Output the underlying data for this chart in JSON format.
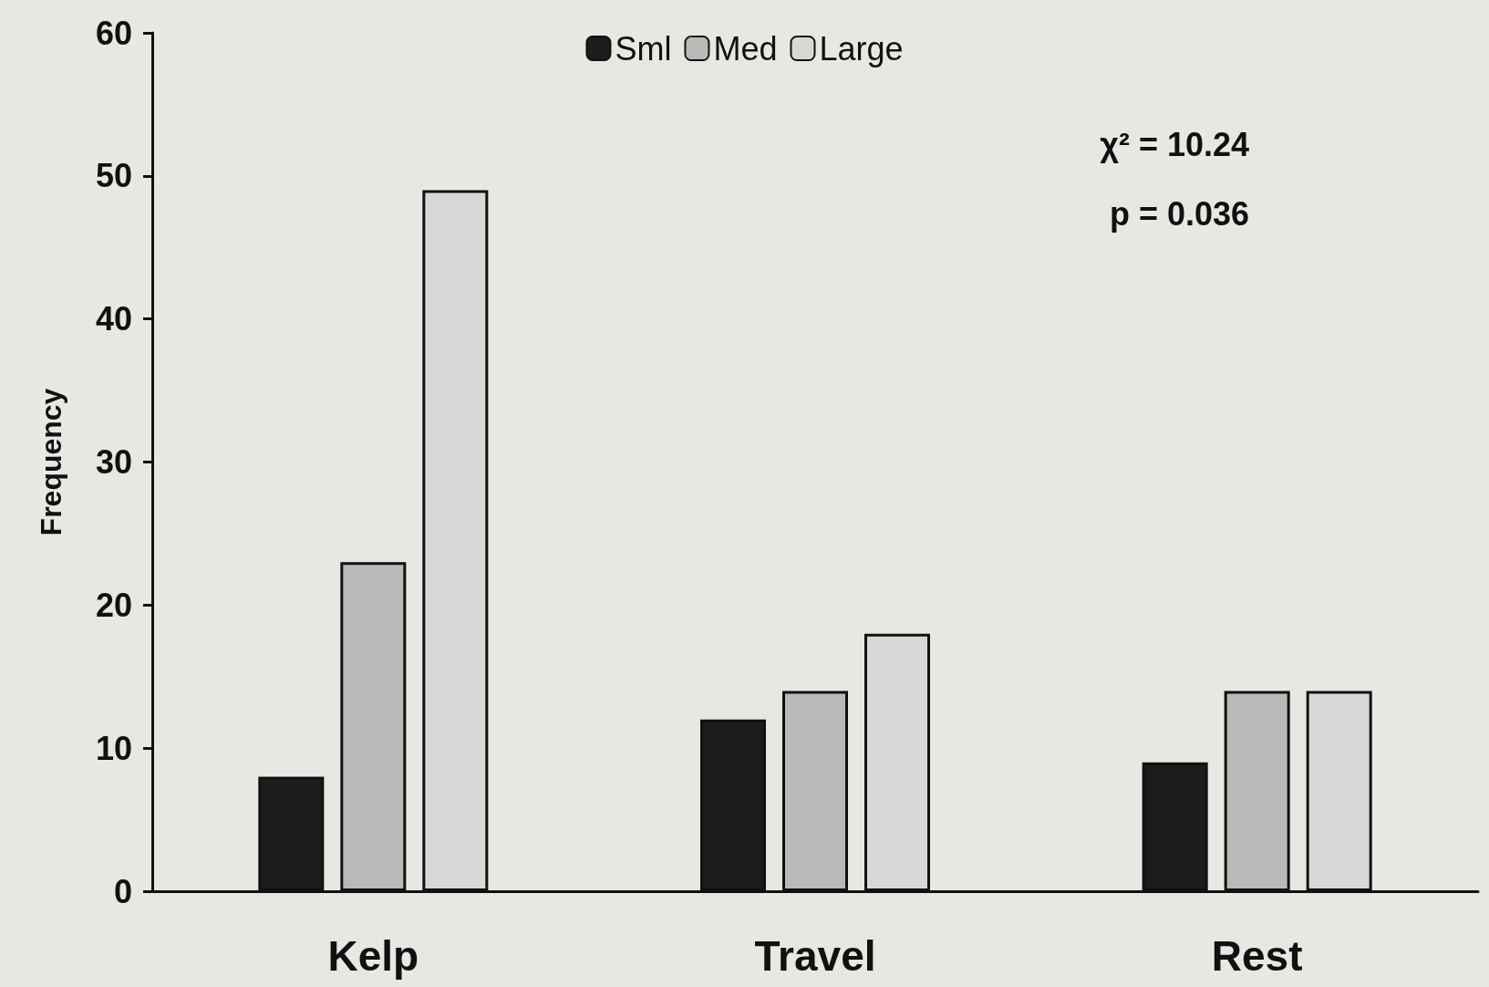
{
  "chart_data": {
    "type": "bar",
    "ylabel": "Frequency",
    "categories": [
      "Kelp",
      "Travel",
      "Rest"
    ],
    "series": [
      {
        "name": "Sml",
        "color": "#1c1c1c",
        "values": [
          8,
          12,
          9
        ]
      },
      {
        "name": "Med",
        "color": "#b9b9b7",
        "values": [
          23,
          14,
          14
        ]
      },
      {
        "name": "Large",
        "color": "#d8d8d6",
        "values": [
          49,
          18,
          14
        ]
      }
    ],
    "ylim": [
      0,
      60
    ],
    "yticks": [
      0,
      10,
      20,
      30,
      40,
      50,
      60
    ],
    "grid": false,
    "legend": "top",
    "annotations": [
      "χ² = 10.24",
      "p = 0.036"
    ]
  }
}
